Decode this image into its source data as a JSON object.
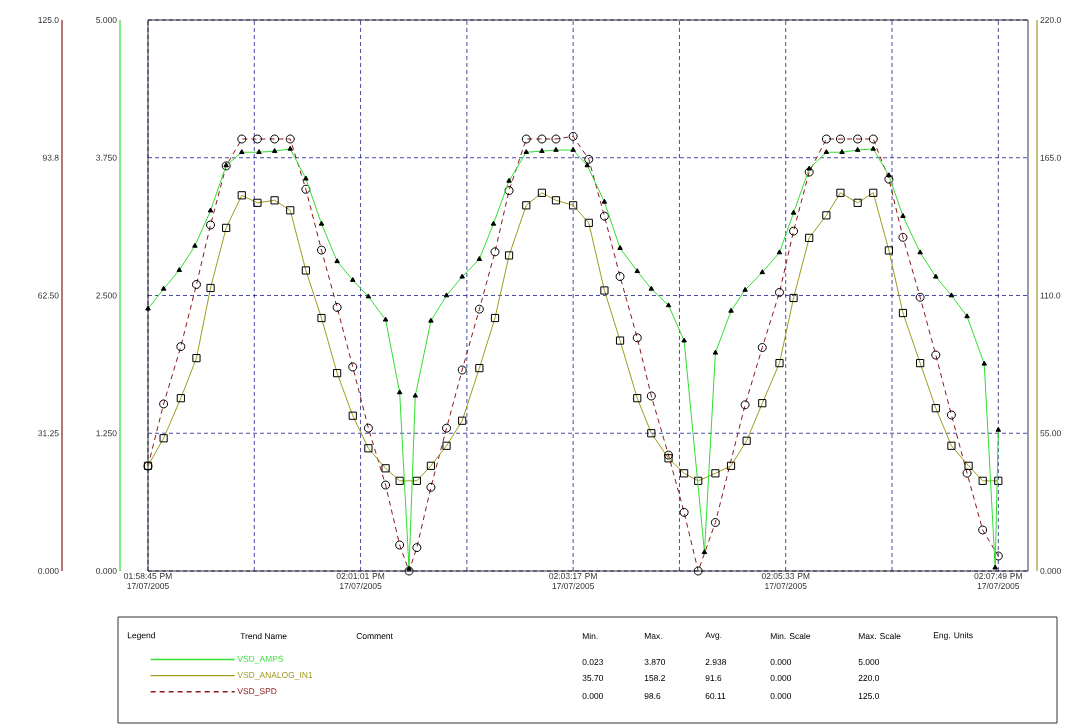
{
  "chart_data": {
    "type": "line",
    "xlim": [
      "2005-07-17T13:58:45",
      "2005-07-17T14:08:08"
    ],
    "xticks": [
      {
        "value": "2005-07-17T13:58:45",
        "label": "01:58:45 PM 17/07/2005"
      },
      {
        "value": "2005-07-17T13:59:53",
        "label": null
      },
      {
        "value": "2005-07-17T14:01:01",
        "label": "02:01:01 PM 17/07/2005"
      },
      {
        "value": "2005-07-17T14:02:09",
        "label": null
      },
      {
        "value": "2005-07-17T14:03:17",
        "label": "02:03:17 PM 17/07/2005"
      },
      {
        "value": "2005-07-17T14:04:25",
        "label": null
      },
      {
        "value": "2005-07-17T14:05:33",
        "label": "02:05:33 PM 17/07/2005"
      },
      {
        "value": "2005-07-17T14:06:41",
        "label": null
      },
      {
        "value": "2005-07-17T14:07:49",
        "label": "02:07:49 PM 17/07/2005"
      }
    ],
    "y3lim": [
      0,
      5
    ],
    "y3ticks": [
      {
        "value": 0,
        "label": "0.000"
      },
      {
        "value": 1.25,
        "label": "1.250"
      },
      {
        "value": 2.5,
        "label": "2.500"
      },
      {
        "value": 3.75,
        "label": "3.750"
      },
      {
        "value": 5,
        "label": "5.000"
      }
    ],
    "y2lim": [
      0,
      220
    ],
    "y2ticks": [
      {
        "value": 0,
        "label": "0.000"
      },
      {
        "value": 55,
        "label": "55.00"
      },
      {
        "value": 110,
        "label": "110.0"
      },
      {
        "value": 165,
        "label": "165.0"
      },
      {
        "value": 220,
        "label": "220.0"
      }
    ],
    "ylim": [
      0,
      125
    ],
    "yticks": [
      {
        "value": 0,
        "label": "0.000"
      },
      {
        "value": 31.25,
        "label": "31.25"
      },
      {
        "value": 62.5,
        "label": "62.50"
      },
      {
        "value": 93.75,
        "label": "93.8"
      },
      {
        "value": 125,
        "label": "125.0"
      }
    ],
    "grid": true,
    "legend": "bottom",
    "series": [
      {
        "name": "VSD_AMPS",
        "color": "#33dd33",
        "axis": "y3",
        "marker": "triangle",
        "line_style": "solid",
        "x": [
          "2005-07-17T13:58:45",
          "2005-07-17T13:58:55",
          "2005-07-17T13:59:05",
          "2005-07-17T13:59:15",
          "2005-07-17T13:59:25",
          "2005-07-17T13:59:35",
          "2005-07-17T13:59:45",
          "2005-07-17T13:59:56",
          "2005-07-17T14:00:06",
          "2005-07-17T14:00:16",
          "2005-07-17T14:00:26",
          "2005-07-17T14:00:36",
          "2005-07-17T14:00:46",
          "2005-07-17T14:00:56",
          "2005-07-17T14:01:06",
          "2005-07-17T14:01:17",
          "2005-07-17T14:01:26",
          "2005-07-17T14:01:32",
          "2005-07-17T14:01:36",
          "2005-07-17T14:01:46",
          "2005-07-17T14:01:56",
          "2005-07-17T14:02:06",
          "2005-07-17T14:02:17",
          "2005-07-17T14:02:26",
          "2005-07-17T14:02:36",
          "2005-07-17T14:02:47",
          "2005-07-17T14:02:57",
          "2005-07-17T14:03:06",
          "2005-07-17T14:03:17",
          "2005-07-17T14:03:26",
          "2005-07-17T14:03:37",
          "2005-07-17T14:03:47",
          "2005-07-17T14:03:58",
          "2005-07-17T14:04:07",
          "2005-07-17T14:04:18",
          "2005-07-17T14:04:28",
          "2005-07-17T14:04:41",
          "2005-07-17T14:04:48",
          "2005-07-17T14:04:58",
          "2005-07-17T14:05:07",
          "2005-07-17T14:05:18",
          "2005-07-17T14:05:29",
          "2005-07-17T14:05:38",
          "2005-07-17T14:05:48",
          "2005-07-17T14:05:59",
          "2005-07-17T14:06:09",
          "2005-07-17T14:06:19",
          "2005-07-17T14:06:29",
          "2005-07-17T14:06:39",
          "2005-07-17T14:06:48",
          "2005-07-17T14:06:59",
          "2005-07-17T14:07:09",
          "2005-07-17T14:07:19",
          "2005-07-17T14:07:29",
          "2005-07-17T14:07:40",
          "2005-07-17T14:07:47",
          "2005-07-17T14:07:49"
        ],
        "values": [
          2.38,
          2.56,
          2.73,
          2.95,
          3.27,
          3.68,
          3.8,
          3.8,
          3.81,
          3.83,
          3.56,
          3.15,
          2.81,
          2.64,
          2.49,
          2.28,
          1.62,
          0.02,
          1.59,
          2.27,
          2.5,
          2.67,
          2.83,
          3.15,
          3.54,
          3.8,
          3.81,
          3.82,
          3.82,
          3.68,
          3.35,
          2.93,
          2.72,
          2.56,
          2.41,
          2.09,
          0.17,
          1.98,
          2.36,
          2.55,
          2.71,
          2.89,
          3.25,
          3.65,
          3.8,
          3.8,
          3.82,
          3.83,
          3.59,
          3.22,
          2.89,
          2.67,
          2.5,
          2.31,
          1.88,
          0.03,
          1.28
        ]
      },
      {
        "name": "VSD_ANALOG_IN1",
        "color": "#a09a1e",
        "axis": "y2",
        "marker": "square",
        "line_style": "solid",
        "x": [
          "2005-07-17T13:58:45",
          "2005-07-17T13:58:55",
          "2005-07-17T13:59:06",
          "2005-07-17T13:59:16",
          "2005-07-17T13:59:25",
          "2005-07-17T13:59:35",
          "2005-07-17T13:59:45",
          "2005-07-17T13:59:55",
          "2005-07-17T14:00:06",
          "2005-07-17T14:00:16",
          "2005-07-17T14:00:26",
          "2005-07-17T14:00:36",
          "2005-07-17T14:00:46",
          "2005-07-17T14:00:56",
          "2005-07-17T14:01:06",
          "2005-07-17T14:01:17",
          "2005-07-17T14:01:26",
          "2005-07-17T14:01:37",
          "2005-07-17T14:01:46",
          "2005-07-17T14:01:56",
          "2005-07-17T14:02:06",
          "2005-07-17T14:02:17",
          "2005-07-17T14:02:27",
          "2005-07-17T14:02:36",
          "2005-07-17T14:02:47",
          "2005-07-17T14:02:57",
          "2005-07-17T14:03:06",
          "2005-07-17T14:03:17",
          "2005-07-17T14:03:27",
          "2005-07-17T14:03:37",
          "2005-07-17T14:03:47",
          "2005-07-17T14:03:58",
          "2005-07-17T14:04:07",
          "2005-07-17T14:04:18",
          "2005-07-17T14:04:28",
          "2005-07-17T14:04:37",
          "2005-07-17T14:04:48",
          "2005-07-17T14:04:58",
          "2005-07-17T14:05:08",
          "2005-07-17T14:05:18",
          "2005-07-17T14:05:29",
          "2005-07-17T14:05:38",
          "2005-07-17T14:05:48",
          "2005-07-17T14:05:59",
          "2005-07-17T14:06:08",
          "2005-07-17T14:06:19",
          "2005-07-17T14:06:29",
          "2005-07-17T14:06:39",
          "2005-07-17T14:06:48",
          "2005-07-17T14:06:59",
          "2005-07-17T14:07:09",
          "2005-07-17T14:07:19",
          "2005-07-17T14:07:30",
          "2005-07-17T14:07:39",
          "2005-07-17T14:07:49"
        ],
        "values": [
          42,
          53,
          69,
          85,
          113,
          137,
          150,
          147,
          148,
          144,
          120,
          101,
          79,
          62,
          49,
          41,
          36,
          36,
          42,
          50,
          60,
          81,
          101,
          126,
          146,
          151,
          148,
          146,
          139,
          112,
          92,
          69,
          55,
          45,
          39,
          36,
          39,
          42,
          52,
          67,
          83,
          109,
          133,
          142,
          151,
          147,
          151,
          128,
          103,
          83,
          65,
          50,
          42,
          36,
          36
        ]
      },
      {
        "name": "VSD_SPD",
        "color": "#8b1a1a",
        "axis": "y",
        "marker": "circle",
        "line_style": "dashed",
        "x": [
          "2005-07-17T13:58:45",
          "2005-07-17T13:58:55",
          "2005-07-17T13:59:06",
          "2005-07-17T13:59:16",
          "2005-07-17T13:59:25",
          "2005-07-17T13:59:35",
          "2005-07-17T13:59:45",
          "2005-07-17T13:59:55",
          "2005-07-17T14:00:06",
          "2005-07-17T14:00:16",
          "2005-07-17T14:00:26",
          "2005-07-17T14:00:36",
          "2005-07-17T14:00:46",
          "2005-07-17T14:00:56",
          "2005-07-17T14:01:06",
          "2005-07-17T14:01:17",
          "2005-07-17T14:01:26",
          "2005-07-17T14:01:32",
          "2005-07-17T14:01:37",
          "2005-07-17T14:01:46",
          "2005-07-17T14:01:56",
          "2005-07-17T14:02:06",
          "2005-07-17T14:02:17",
          "2005-07-17T14:02:27",
          "2005-07-17T14:02:36",
          "2005-07-17T14:02:47",
          "2005-07-17T14:02:57",
          "2005-07-17T14:03:06",
          "2005-07-17T14:03:17",
          "2005-07-17T14:03:27",
          "2005-07-17T14:03:37",
          "2005-07-17T14:03:47",
          "2005-07-17T14:03:58",
          "2005-07-17T14:04:07",
          "2005-07-17T14:04:18",
          "2005-07-17T14:04:28",
          "2005-07-17T14:04:37",
          "2005-07-17T14:04:48",
          "2005-07-17T14:05:07",
          "2005-07-17T14:05:18",
          "2005-07-17T14:05:29",
          "2005-07-17T14:05:38",
          "2005-07-17T14:05:48",
          "2005-07-17T14:05:59",
          "2005-07-17T14:06:08",
          "2005-07-17T14:06:19",
          "2005-07-17T14:06:29",
          "2005-07-17T14:06:39",
          "2005-07-17T14:06:48",
          "2005-07-17T14:06:59",
          "2005-07-17T14:07:09",
          "2005-07-17T14:07:19",
          "2005-07-17T14:07:29",
          "2005-07-17T14:07:39",
          "2005-07-17T14:07:49"
        ],
        "values": [
          23.8,
          37.9,
          50.9,
          65.0,
          78.5,
          91.9,
          98.0,
          98.0,
          98.0,
          98.0,
          86.6,
          72.8,
          59.8,
          46.3,
          32.4,
          19.5,
          5.9,
          0.0,
          5.3,
          19.0,
          32.4,
          45.6,
          59.4,
          72.4,
          86.3,
          98.0,
          98.0,
          98.0,
          98.6,
          93.4,
          80.5,
          66.8,
          52.9,
          39.7,
          26.3,
          13.3,
          0.0,
          11.0,
          37.7,
          50.7,
          63.2,
          77.1,
          90.5,
          98.0,
          98.0,
          98.0,
          98.0,
          88.9,
          75.7,
          62.1,
          49.0,
          35.4,
          22.2,
          9.3,
          3.4
        ]
      }
    ],
    "annotations": [
      "Legend",
      "Trend Name",
      "Comment",
      "Min.",
      "Max.",
      "Avg.",
      "Min. Scale",
      "Max. Scale",
      "Eng. Units",
      "0.023",
      "3.870",
      "2.938",
      "0.000",
      "5.000",
      "35.70",
      "158.2",
      "91.6",
      "0.000",
      "220.0",
      "0.000",
      "98.6",
      "60.11",
      "0.000",
      "125.0"
    ]
  }
}
